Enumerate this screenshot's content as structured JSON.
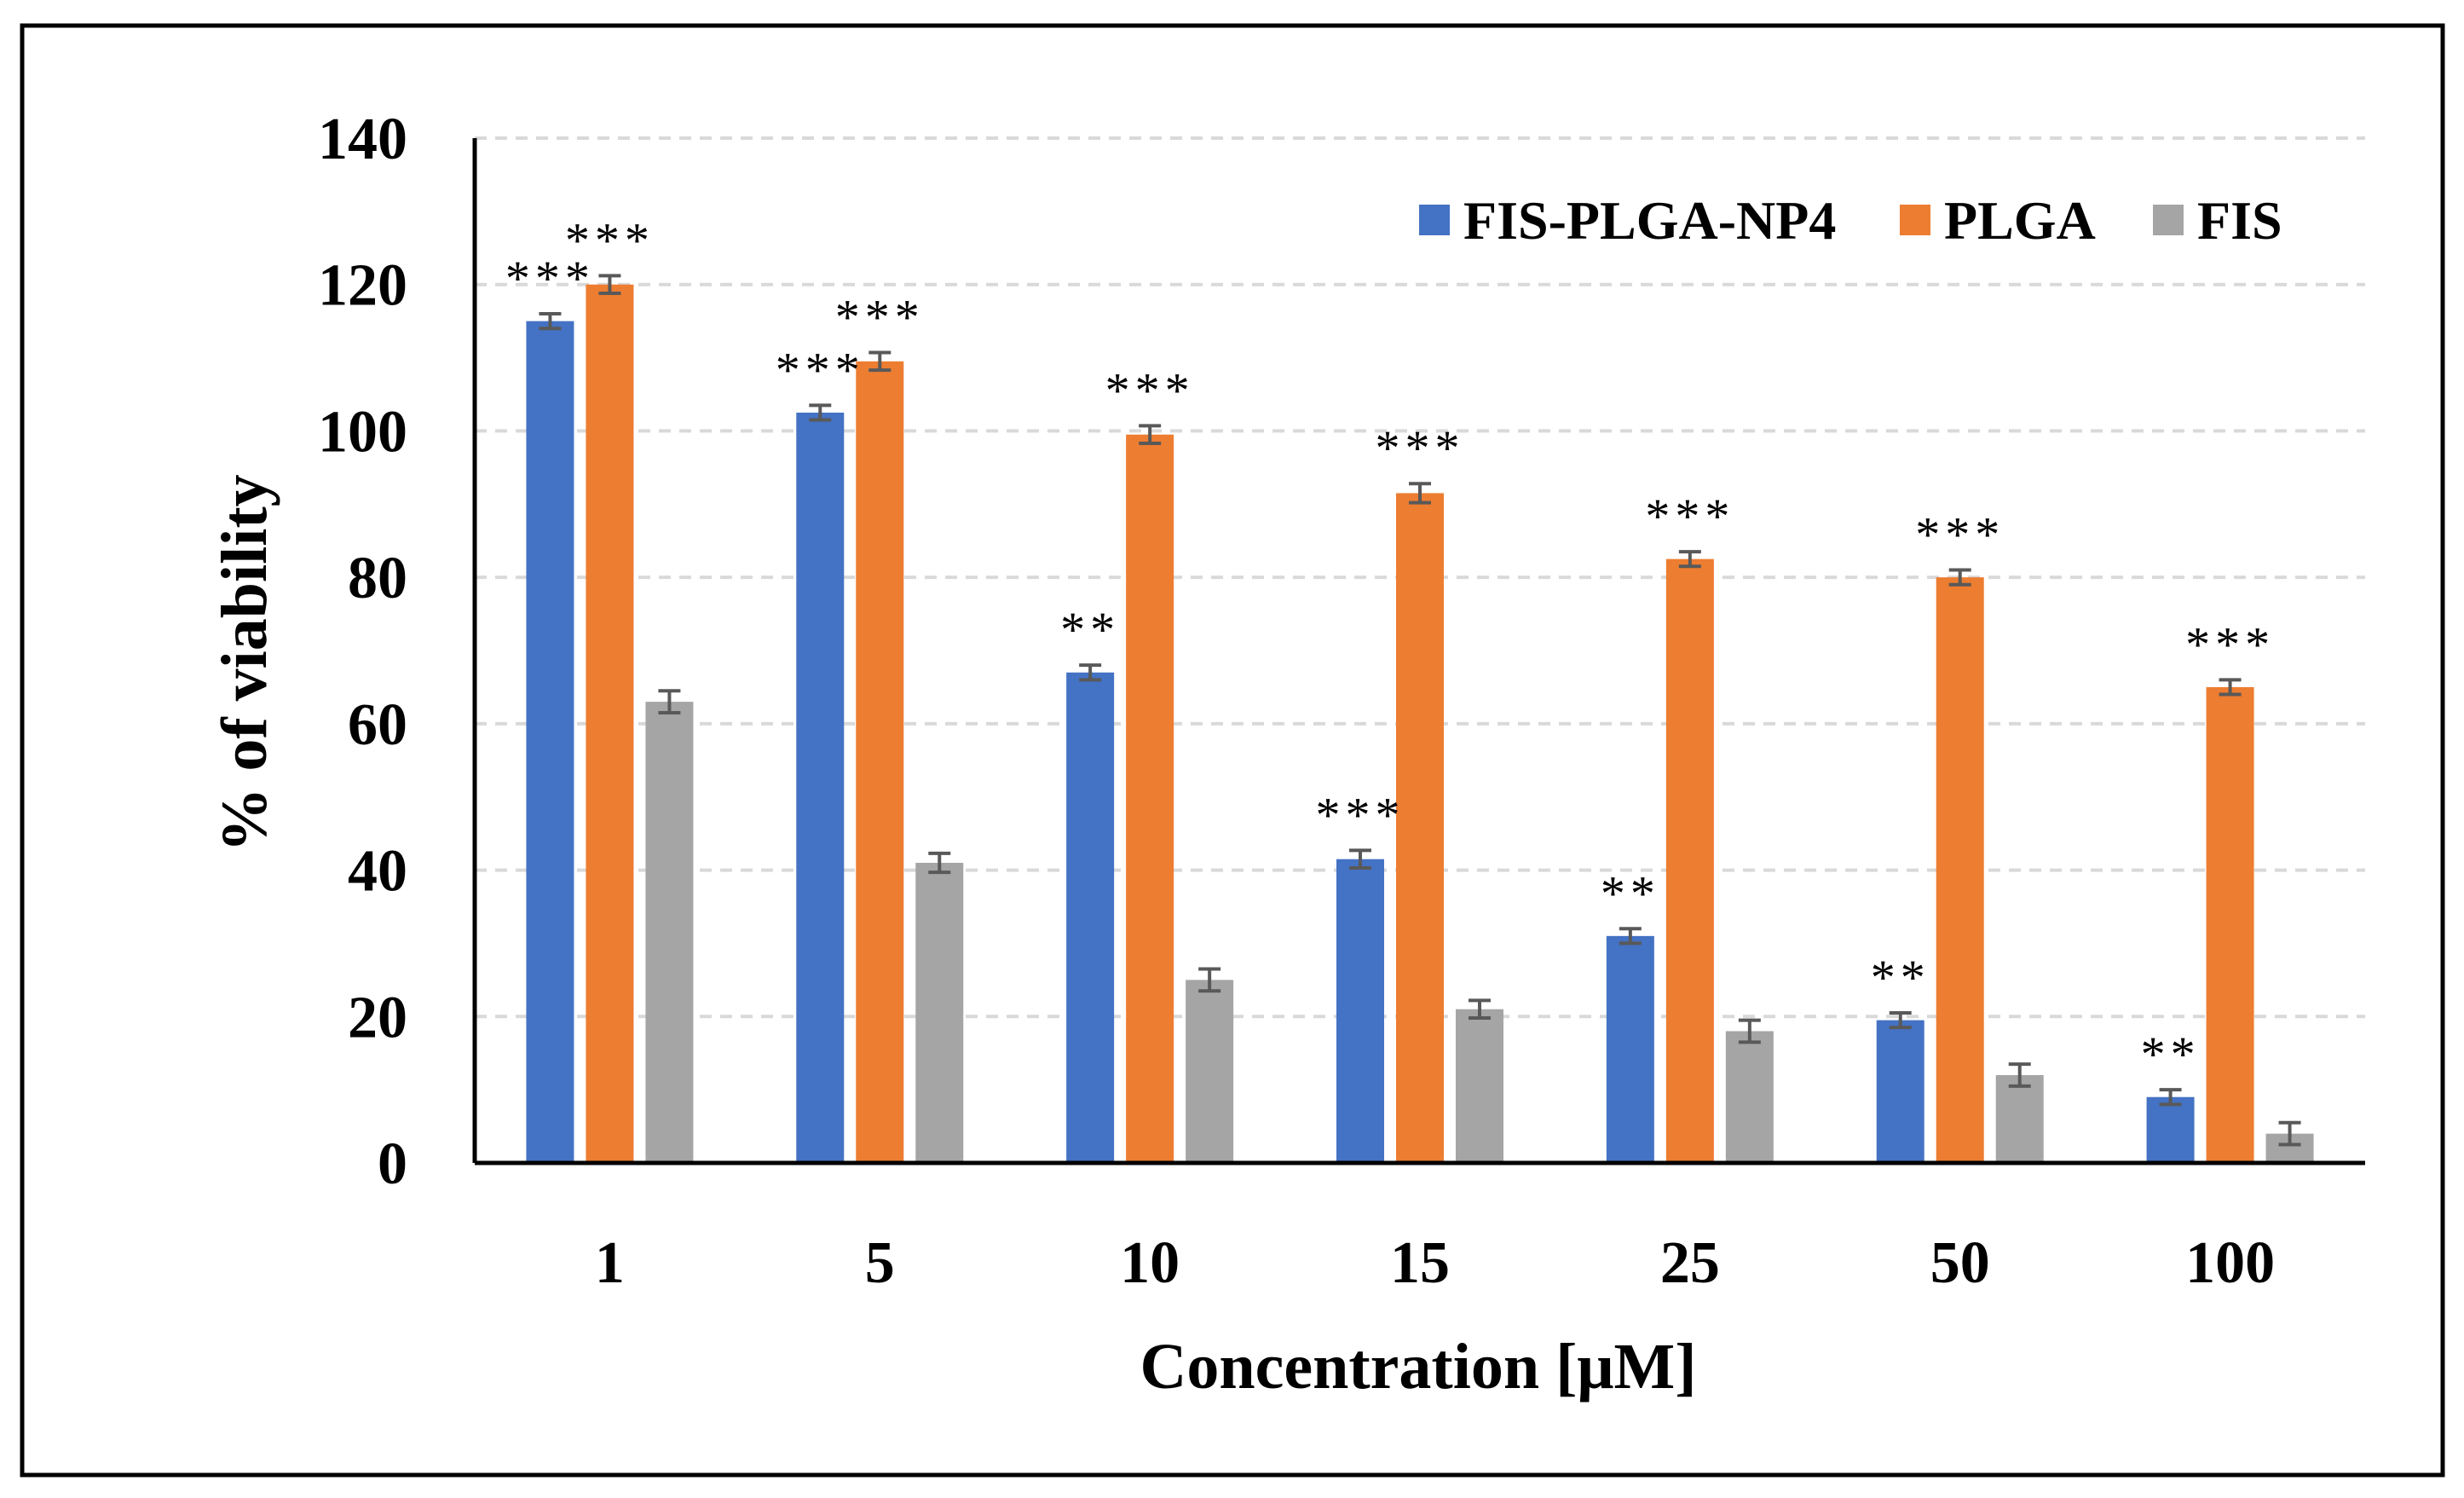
{
  "chart_data": {
    "type": "bar",
    "title": "",
    "xlabel": "Concentration [μM]",
    "ylabel": "% of viability",
    "ylim": [
      0,
      140
    ],
    "yticks": [
      0,
      20,
      40,
      60,
      80,
      100,
      120,
      140
    ],
    "grid": true,
    "legend_position": "top-right",
    "categories": [
      "1",
      "5",
      "10",
      "15",
      "25",
      "50",
      "100"
    ],
    "series": [
      {
        "name": "FIS-PLGA-NP4",
        "color": "#4472C4",
        "values": [
          115,
          102.5,
          67,
          41.5,
          31,
          19.5,
          9
        ],
        "errors": [
          1,
          1,
          1,
          1.2,
          1,
          1,
          1
        ],
        "significance": [
          "***",
          "***",
          "**",
          "***",
          "**",
          "**",
          "**"
        ]
      },
      {
        "name": "PLGA",
        "color": "#ED7D31",
        "values": [
          120,
          109.5,
          99.5,
          91.5,
          82.5,
          80,
          65
        ],
        "errors": [
          1.2,
          1.2,
          1.2,
          1.3,
          1,
          1,
          1
        ],
        "significance": [
          "***",
          "***",
          "***",
          "***",
          "***",
          "***",
          "***"
        ]
      },
      {
        "name": "FIS",
        "color": "#A5A5A5",
        "values": [
          63,
          41,
          25,
          21,
          18,
          12,
          4
        ],
        "errors": [
          1.5,
          1.3,
          1.5,
          1.2,
          1.5,
          1.5,
          1.5
        ],
        "significance": [
          "",
          "",
          "",
          "",
          "",
          "",
          ""
        ]
      }
    ]
  }
}
